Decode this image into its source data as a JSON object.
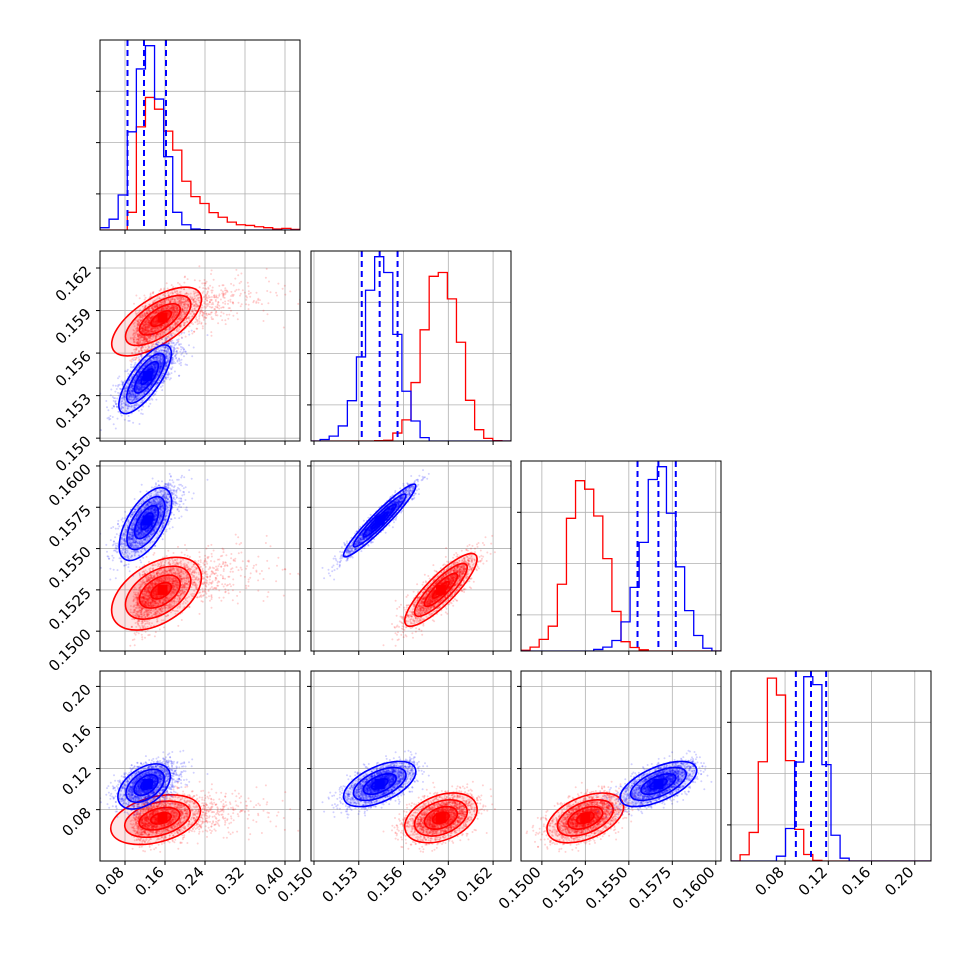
{
  "chart_data": {
    "type": "corner",
    "grid": true,
    "colors": {
      "blue": "#0000ff",
      "red": "#ff0000"
    },
    "parameters": [
      {
        "range": [
          0.03,
          0.43
        ],
        "ticks": [
          0.08,
          0.16,
          0.24,
          0.32,
          0.4
        ],
        "tick_labels": [
          "0.08",
          "0.16",
          "0.24",
          "0.32",
          "0.40"
        ],
        "blue": {
          "mean": 0.125,
          "sd": 0.028,
          "quantiles": [
            0.085,
            0.118,
            0.162
          ]
        },
        "red": {
          "mean": 0.155,
          "sd": 0.048,
          "skew": 1.4
        }
      },
      {
        "range": [
          0.1498,
          0.1632
        ],
        "ticks": [
          0.15,
          0.153,
          0.156,
          0.159,
          0.162
        ],
        "tick_labels": [
          "0.150",
          "0.153",
          "0.156",
          "0.159",
          "0.162"
        ],
        "blue": {
          "mean": 0.1544,
          "sd": 0.0011,
          "quantiles": [
            0.1532,
            0.1544,
            0.1556
          ]
        },
        "red": {
          "mean": 0.1585,
          "sd": 0.0011
        }
      },
      {
        "range": [
          0.1488,
          0.1603
        ],
        "ticks": [
          0.15,
          0.1525,
          0.155,
          0.1575,
          0.16
        ],
        "tick_labels": [
          "0.1500",
          "0.1525",
          "0.1550",
          "0.1575",
          "0.1600"
        ],
        "blue": {
          "mean": 0.1567,
          "sd": 0.001,
          "quantiles": [
            0.1555,
            0.1567,
            0.1577
          ]
        },
        "red": {
          "mean": 0.1525,
          "sd": 0.001
        }
      },
      {
        "range": [
          0.03,
          0.215
        ],
        "ticks": [
          0.08,
          0.12,
          0.16,
          0.2
        ],
        "tick_labels": [
          "0.08",
          "0.12",
          "0.16",
          "0.20"
        ],
        "blue": {
          "mean": 0.105,
          "sd": 0.01,
          "quantiles": [
            0.09,
            0.104,
            0.118
          ]
        },
        "red": {
          "mean": 0.072,
          "sd": 0.011
        }
      }
    ],
    "correlations": {
      "blue": {
        "1-0": 0.75,
        "2-0": 0.6,
        "2-1": 0.95,
        "3-0": 0.45,
        "3-1": 0.55,
        "3-2": 0.6
      },
      "red": {
        "1-0": 0.65,
        "2-0": 0.45,
        "2-1": 0.85,
        "3-0": 0.35,
        "3-1": 0.35,
        "3-2": 0.45
      }
    }
  }
}
